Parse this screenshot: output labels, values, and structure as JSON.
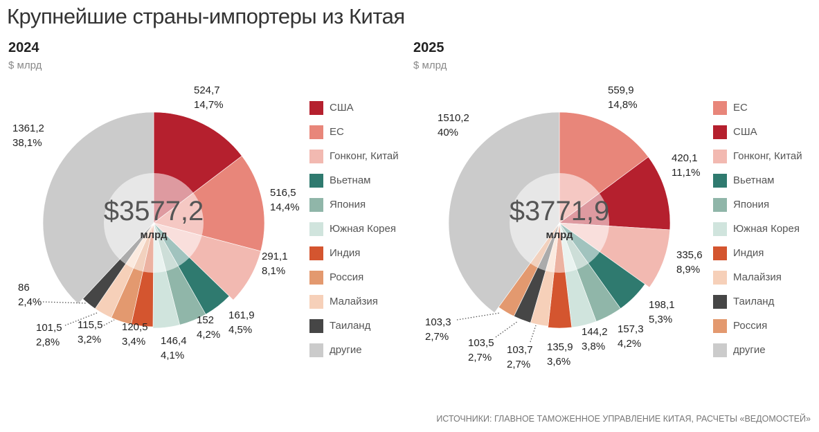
{
  "title": "Крупнейшие страны-импортеры из Китая",
  "footer": "Источники: Главное таможенное управление Китая, расчеты «Ведомостей»",
  "colors": {
    "США": "#b5202e",
    "ЕС": "#e8867a",
    "Гонконг, Китай": "#f2b9b1",
    "Вьетнам": "#2f7a6f",
    "Япония": "#90b6a9",
    "Южная Корея": "#d0e4dd",
    "Индия": "#d4552f",
    "Россия": "#e3996f",
    "Малайзия": "#f6d0b9",
    "Таиланд": "#464646",
    "другие": "#cbcbcb"
  },
  "chart_data": [
    {
      "type": "pie",
      "year": "2024",
      "unit": "$ млрд",
      "total_label": "$3577,2",
      "total_unit": "млрд",
      "slices": [
        {
          "name": "США",
          "value": 524.7,
          "value_label": "524,7",
          "pct_label": "14,7%"
        },
        {
          "name": "ЕС",
          "value": 516.5,
          "value_label": "516,5",
          "pct_label": "14,4%"
        },
        {
          "name": "Гонконг, Китай",
          "value": 291.1,
          "value_label": "291,1",
          "pct_label": "8,1%"
        },
        {
          "name": "Вьетнам",
          "value": 161.9,
          "value_label": "161,9",
          "pct_label": "4,5%"
        },
        {
          "name": "Япония",
          "value": 152,
          "value_label": "152",
          "pct_label": "4,2%"
        },
        {
          "name": "Южная Корея",
          "value": 146.4,
          "value_label": "146,4",
          "pct_label": "4,1%"
        },
        {
          "name": "Индия",
          "value": 120.5,
          "value_label": "120,5",
          "pct_label": "3,4%"
        },
        {
          "name": "Россия",
          "value": 115.5,
          "value_label": "115,5",
          "pct_label": "3,2%"
        },
        {
          "name": "Малайзия",
          "value": 101.5,
          "value_label": "101,5",
          "pct_label": "2,8%"
        },
        {
          "name": "Таиланд",
          "value": 86,
          "value_label": "86",
          "pct_label": "2,4%"
        },
        {
          "name": "другие",
          "value": 1361.2,
          "value_label": "1361,2",
          "pct_label": "38,1%"
        }
      ]
    },
    {
      "type": "pie",
      "year": "2025",
      "unit": "$ млрд",
      "total_label": "$3771,9",
      "total_unit": "млрд",
      "slices": [
        {
          "name": "ЕС",
          "value": 559.9,
          "value_label": "559,9",
          "pct_label": "14,8%"
        },
        {
          "name": "США",
          "value": 420.1,
          "value_label": "420,1",
          "pct_label": "11,1%"
        },
        {
          "name": "Гонконг, Китай",
          "value": 335.6,
          "value_label": "335,6",
          "pct_label": "8,9%"
        },
        {
          "name": "Вьетнам",
          "value": 198.1,
          "value_label": "198,1",
          "pct_label": "5,3%"
        },
        {
          "name": "Япония",
          "value": 157.3,
          "value_label": "157,3",
          "pct_label": "4,2%"
        },
        {
          "name": "Южная Корея",
          "value": 144.2,
          "value_label": "144,2",
          "pct_label": "3,8%"
        },
        {
          "name": "Индия",
          "value": 135.9,
          "value_label": "135,9",
          "pct_label": "3,6%"
        },
        {
          "name": "Малайзия",
          "value": 103.7,
          "value_label": "103,7",
          "pct_label": "2,7%"
        },
        {
          "name": "Таиланд",
          "value": 103.5,
          "value_label": "103,5",
          "pct_label": "2,7%"
        },
        {
          "name": "Россия",
          "value": 103.3,
          "value_label": "103,3",
          "pct_label": "2,7%"
        },
        {
          "name": "другие",
          "value": 1510.2,
          "value_label": "1510,2",
          "pct_label": "40%"
        }
      ]
    }
  ]
}
